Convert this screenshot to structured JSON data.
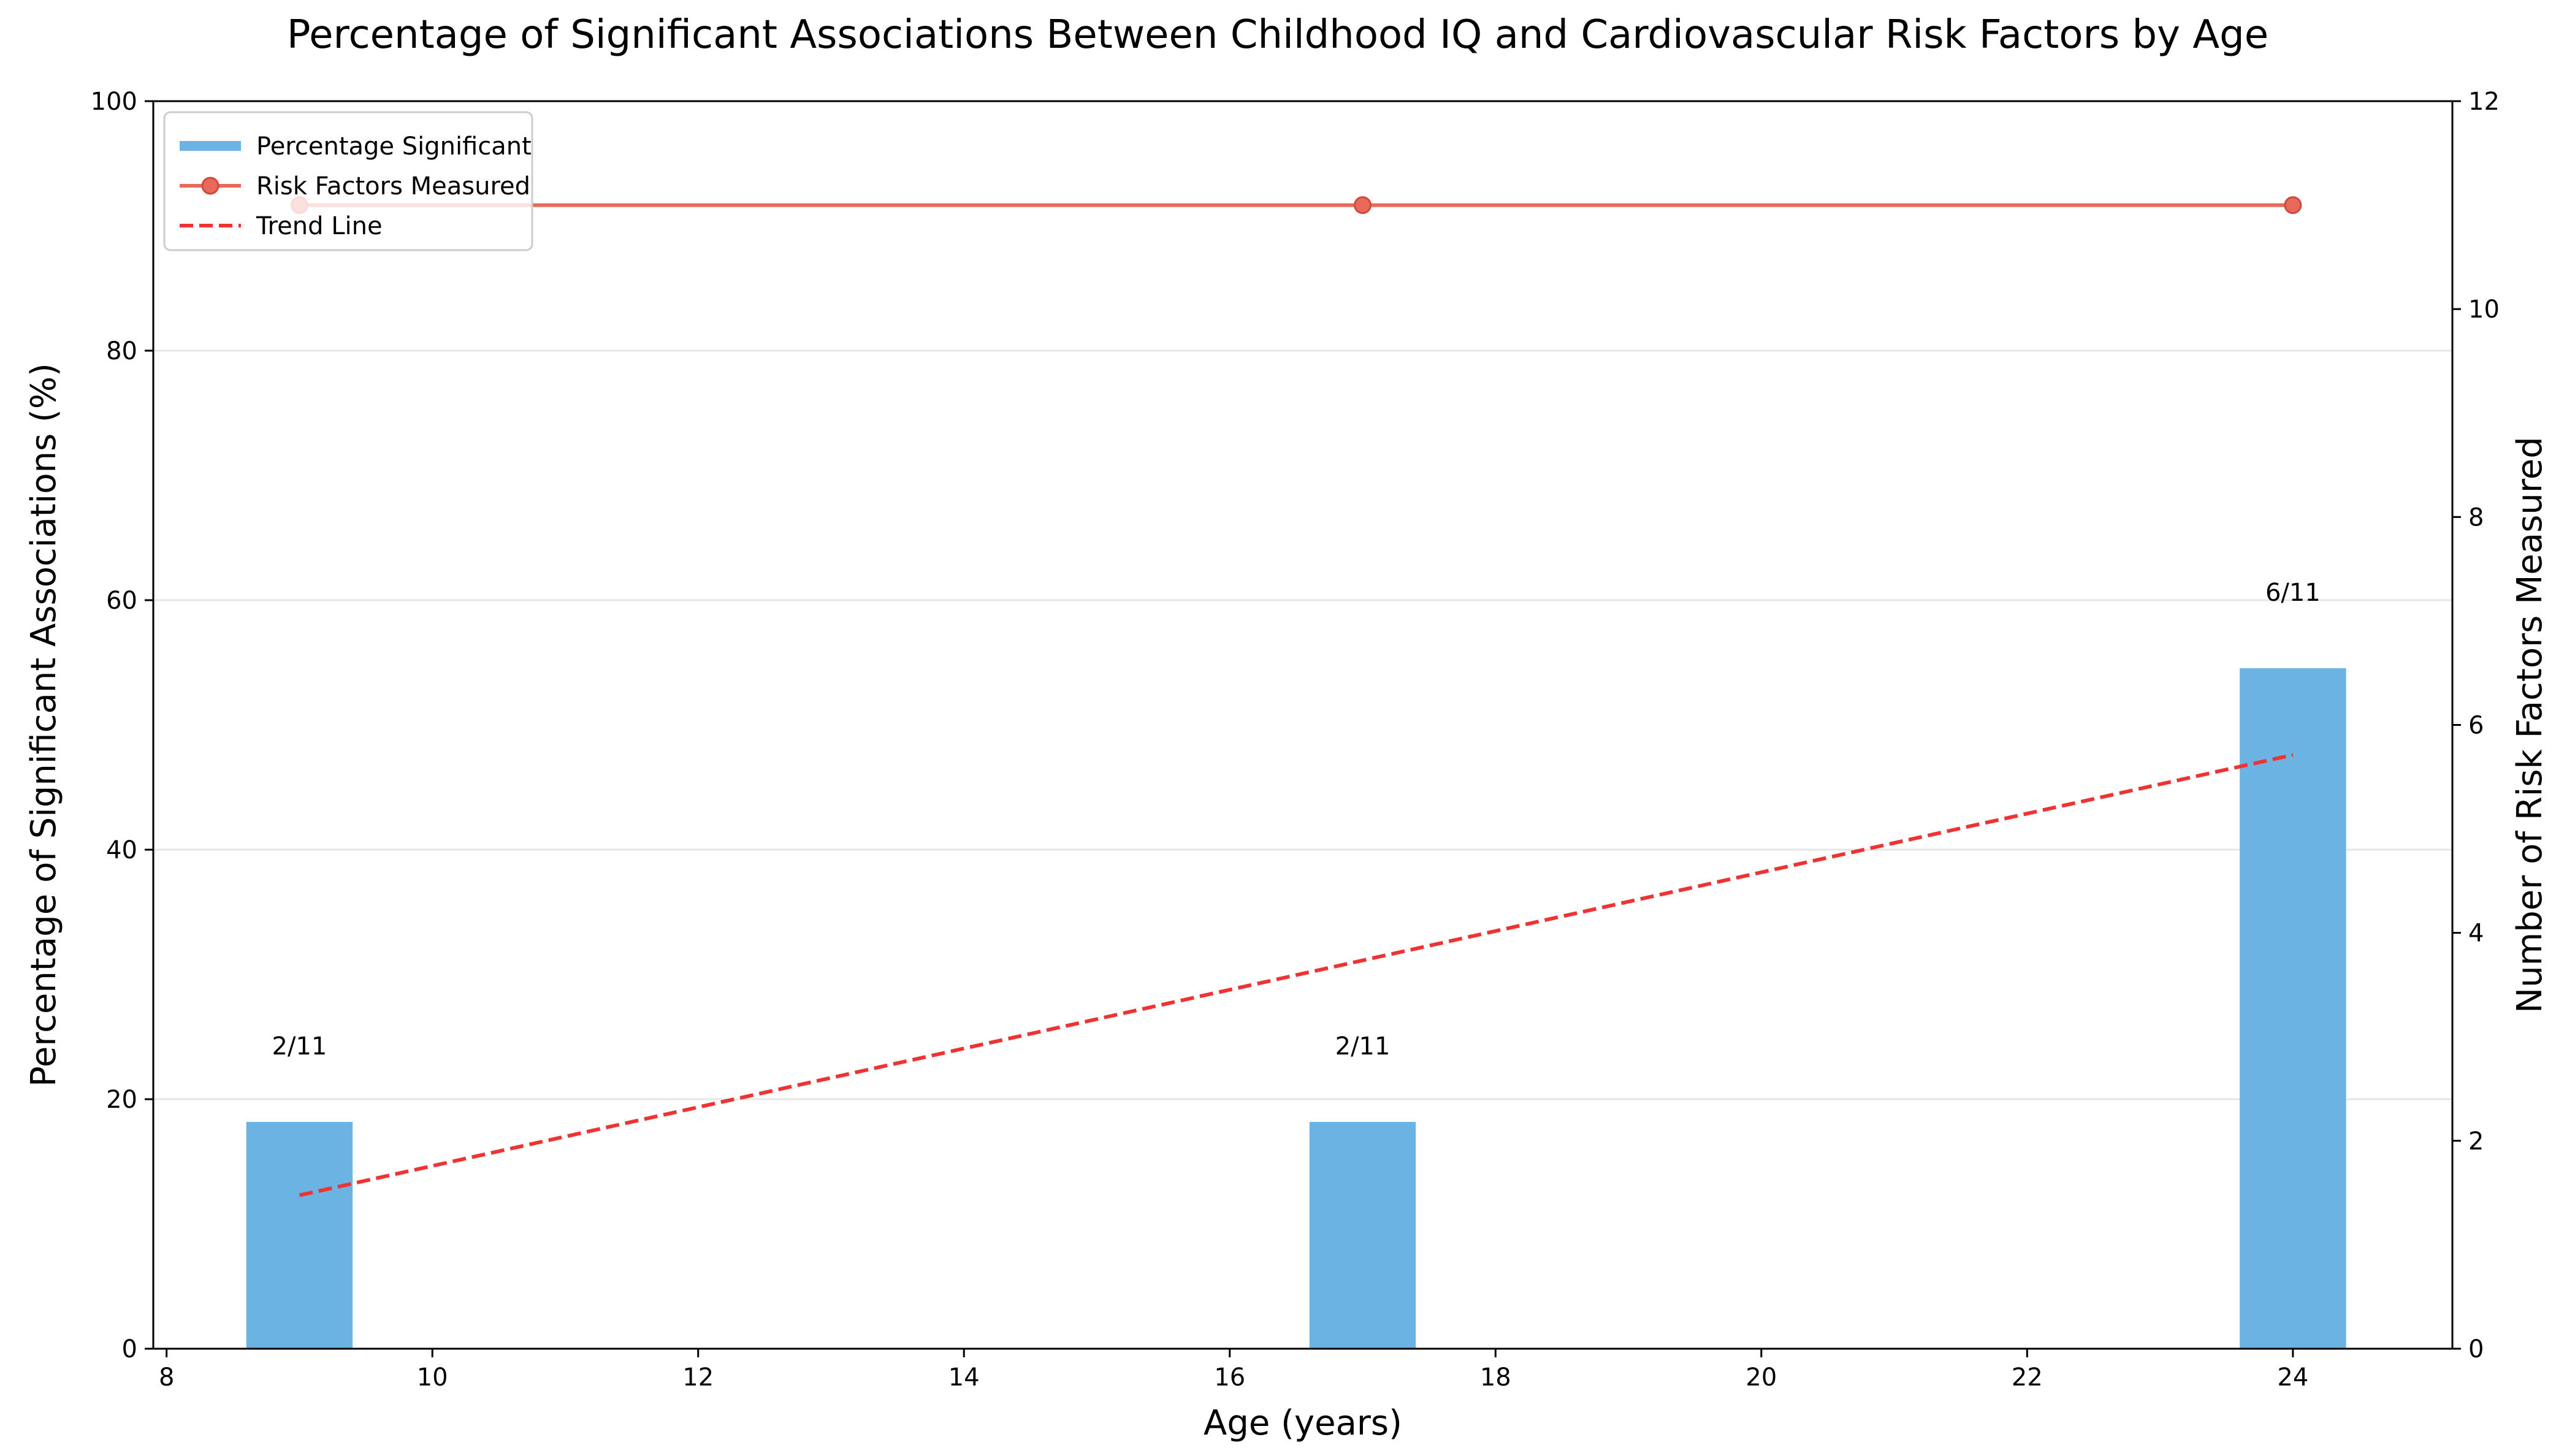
{
  "chart_data": {
    "type": "bar",
    "title": "Percentage of Significant Associations Between Childhood IQ and Cardiovascular Risk Factors by Age",
    "xlabel": "Age (years)",
    "ylabel": "Percentage of Significant Associations (%)",
    "y2label": "Number of Risk Factors Measured",
    "xlim": [
      7.9,
      25.2
    ],
    "ylim": [
      0,
      100
    ],
    "y2lim": [
      0,
      12
    ],
    "x_ticks": [
      8,
      10,
      12,
      14,
      16,
      18,
      20,
      22,
      24
    ],
    "y_ticks": [
      0,
      20,
      40,
      60,
      80,
      100
    ],
    "y2_ticks": [
      0,
      2,
      4,
      6,
      8,
      10,
      12
    ],
    "grid": "horizontal",
    "legend_position": "top-left",
    "series": [
      {
        "name": "Percentage Significant",
        "kind": "bar",
        "axis": "left",
        "color": "#6bb3e3",
        "x": [
          9,
          17,
          24
        ],
        "values": [
          18.18,
          18.18,
          54.55
        ],
        "labels": [
          "2/11",
          "2/11",
          "6/11"
        ]
      },
      {
        "name": "Risk Factors Measured",
        "kind": "line-marker",
        "axis": "right",
        "color": "#e8685a",
        "x": [
          9,
          17,
          24
        ],
        "values": [
          11,
          11,
          11
        ]
      },
      {
        "name": "Trend Line",
        "kind": "dashed-line",
        "axis": "left",
        "color": "#ee3333",
        "x": [
          9,
          24
        ],
        "values": [
          12.3,
          47.6
        ]
      }
    ]
  }
}
